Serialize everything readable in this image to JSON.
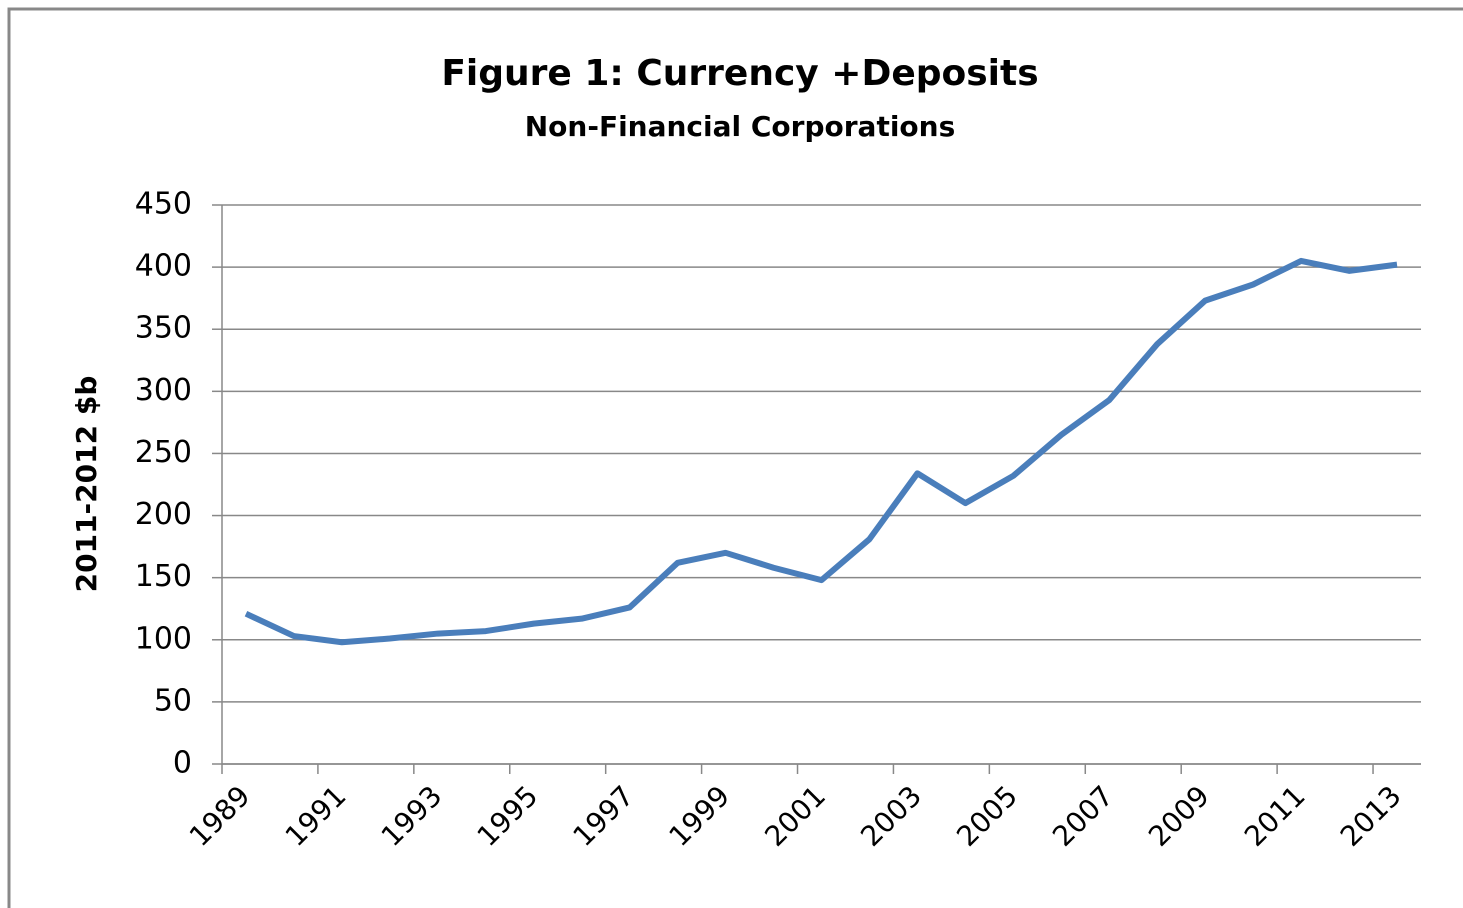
{
  "chart_data": {
    "type": "line",
    "title": "Figure 1: Currency +Deposits",
    "subtitle": "Non-Financial Corporations",
    "y_label": "2011-2012 $b",
    "categories": [
      "1989",
      null,
      "1991",
      null,
      "1993",
      null,
      "1995",
      null,
      "1997",
      null,
      "1999",
      null,
      "2001",
      null,
      "2003",
      null,
      "2005",
      null,
      "2007",
      null,
      "2009",
      null,
      "2011",
      null,
      "2013"
    ],
    "series": [
      {
        "name": "Currency +Deposits",
        "color": "#4a7ebb",
        "values": [
          121,
          103,
          98,
          101,
          105,
          107,
          113,
          117,
          126,
          162,
          170,
          158,
          148,
          181,
          234,
          210,
          232,
          265,
          293,
          338,
          373,
          386,
          405,
          397,
          402
        ]
      }
    ],
    "ylim": [
      0,
      450
    ],
    "yticks": [
      0,
      50,
      100,
      150,
      200,
      250,
      300,
      350,
      400,
      450
    ],
    "grid": true
  }
}
